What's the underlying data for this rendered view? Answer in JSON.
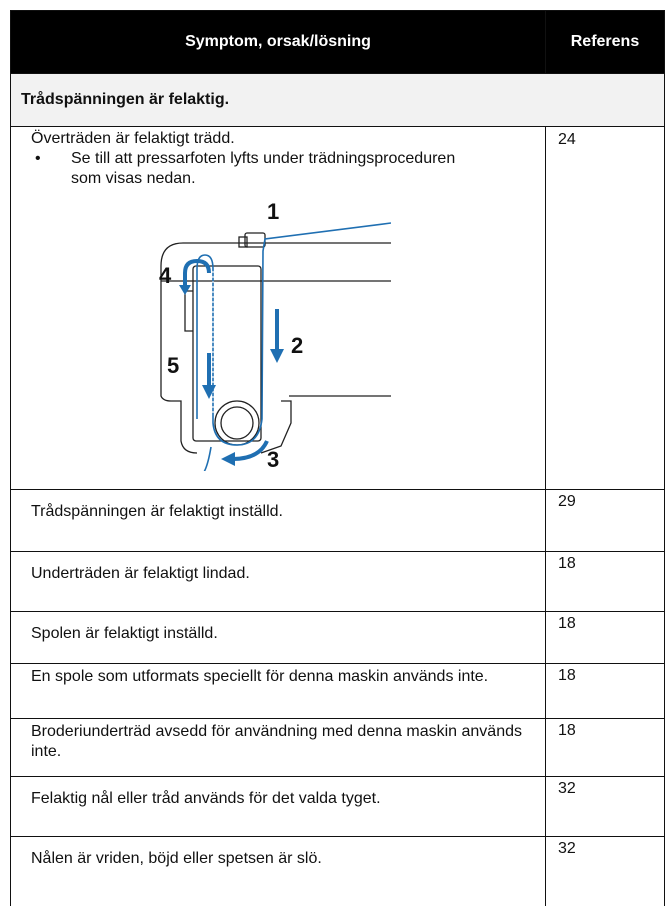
{
  "table": {
    "header": [
      "Symptom, orsak/lösning",
      "Referens"
    ],
    "section": "Trådspänningen är felaktig.",
    "first_row": {
      "text": "Överträden är felaktigt trädd.",
      "bullet": "Se till att pressarfoten lyfts under trädningsproceduren som visas nedan.",
      "ref": "24",
      "diagram_labels": [
        "1",
        "2",
        "3",
        "4",
        "5"
      ]
    },
    "rows": [
      {
        "text": "Trådspänningen är felaktigt inställd.",
        "ref": "29"
      },
      {
        "text": "Underträden är felaktigt lindad.",
        "ref": "18"
      },
      {
        "text": "Spolen är felaktigt inställd.",
        "ref": "18"
      },
      {
        "text": "En spole som utformats speciellt för denna maskin används inte.",
        "ref": "18"
      },
      {
        "text": "Broderiunderträd avsedd för användning med denna maskin används inte.",
        "ref": "18"
      },
      {
        "text": "Felaktig nål eller tråd används för det valda tyget.",
        "ref": "32"
      },
      {
        "text": "Nålen är vriden, böjd eller spetsen är slö.",
        "ref": "32"
      }
    ]
  }
}
